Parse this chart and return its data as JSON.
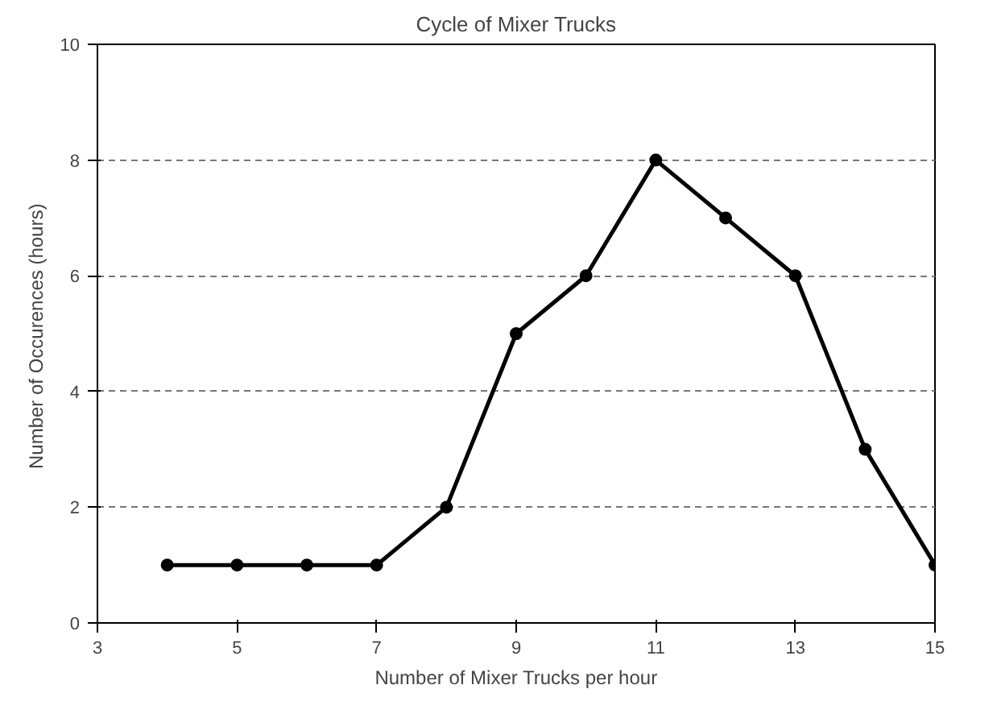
{
  "chart_data": {
    "type": "line",
    "title": "Cycle of Mixer Trucks",
    "xlabel": "Number of Mixer Trucks per hour",
    "ylabel": "Number of  Occurences (hours)",
    "x": [
      4,
      5,
      6,
      7,
      8,
      9,
      10,
      11,
      12,
      13,
      14,
      15
    ],
    "series": [
      {
        "color": "#000000",
        "values": [
          1,
          1,
          1,
          1,
          2,
          5,
          6,
          8,
          7,
          6,
          3,
          1
        ]
      }
    ],
    "xlim": [
      3,
      15
    ],
    "xticks": [
      3,
      5,
      7,
      9,
      11,
      13,
      15
    ],
    "ylim": [
      0,
      10
    ],
    "yticks": [
      0,
      2,
      4,
      6,
      8,
      10
    ],
    "grid": "y",
    "marker": "circle",
    "line_style": "solid"
  }
}
